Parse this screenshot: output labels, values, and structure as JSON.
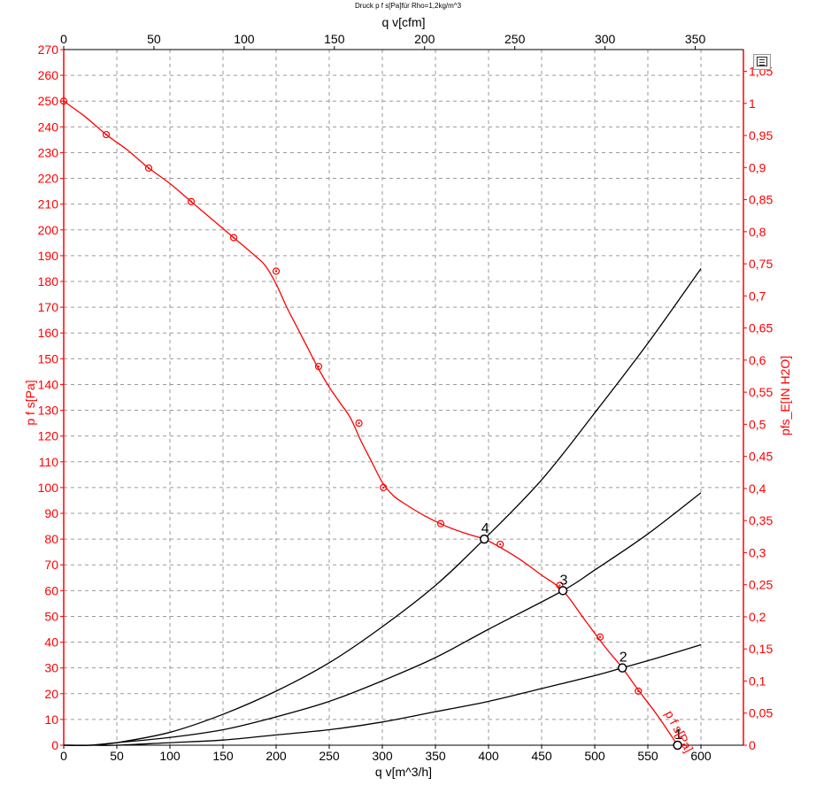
{
  "top_title": "Druck p f s[Pa]für Rho=1,2kg/m^3",
  "toolbar": {
    "icon": "table-view-icon"
  },
  "colors": {
    "red": "#ff0000",
    "black": "#000000",
    "grid": "#9a9a9a"
  },
  "chart_data": {
    "type": "line",
    "x_bottom": {
      "label": "q v[m^3/h]",
      "range": [
        0,
        640
      ],
      "ticks": [
        0,
        50,
        100,
        150,
        200,
        250,
        300,
        350,
        400,
        450,
        500,
        550,
        600
      ]
    },
    "x_top": {
      "label": "q v[cfm]",
      "range": [
        0,
        376.7
      ],
      "ticks": [
        0,
        50,
        100,
        150,
        200,
        250,
        300,
        350
      ]
    },
    "y_left": {
      "label": "p f s[Pa]",
      "range": [
        0,
        270
      ],
      "ticks": [
        0,
        10,
        20,
        30,
        40,
        50,
        60,
        70,
        80,
        90,
        100,
        110,
        120,
        130,
        140,
        150,
        160,
        170,
        180,
        190,
        200,
        210,
        220,
        230,
        240,
        250,
        260,
        270
      ]
    },
    "y_right": {
      "label": "pfs_E[IN H2O]",
      "range": [
        0,
        1.0838
      ],
      "ticks": [
        0,
        0.05,
        0.1,
        0.15,
        0.2,
        0.25,
        0.3,
        0.35,
        0.4,
        0.45,
        0.5,
        0.55,
        0.6,
        0.65,
        0.7,
        0.75,
        0.8,
        0.85,
        0.9,
        0.95,
        1,
        1.05
      ],
      "tick_labels": [
        "0",
        "0,05",
        "0,1",
        "0,15",
        "0,2",
        "0,25",
        "0,3",
        "0,35",
        "0,4",
        "0,45",
        "0,5",
        "0,55",
        "0,6",
        "0,65",
        "0,7",
        "0,75",
        "0,8",
        "0,85",
        "0,9",
        "0,95",
        "1",
        "1,05"
      ]
    },
    "grid": true,
    "series": [
      {
        "name": "p f s[Pa]",
        "color": "#ff0000",
        "curve": [
          [
            0,
            250
          ],
          [
            20,
            244
          ],
          [
            40,
            237
          ],
          [
            60,
            231
          ],
          [
            80,
            224
          ],
          [
            100,
            218
          ],
          [
            120,
            211
          ],
          [
            140,
            204
          ],
          [
            160,
            197
          ],
          [
            180,
            190
          ],
          [
            190,
            186
          ],
          [
            200,
            179
          ],
          [
            210,
            170
          ],
          [
            220,
            162
          ],
          [
            230,
            154
          ],
          [
            240,
            146
          ],
          [
            250,
            139
          ],
          [
            260,
            133
          ],
          [
            270,
            127
          ],
          [
            280,
            118
          ],
          [
            290,
            110
          ],
          [
            300,
            102
          ],
          [
            310,
            97
          ],
          [
            320,
            94
          ],
          [
            340,
            89
          ],
          [
            360,
            85
          ],
          [
            380,
            82
          ],
          [
            396,
            80
          ],
          [
            410,
            77
          ],
          [
            430,
            72
          ],
          [
            450,
            66
          ],
          [
            470,
            60
          ],
          [
            490,
            49
          ],
          [
            510,
            38
          ],
          [
            526,
            30
          ],
          [
            540,
            22
          ],
          [
            560,
            11
          ],
          [
            578,
            0
          ]
        ],
        "markers": [
          [
            0,
            250
          ],
          [
            40,
            237
          ],
          [
            80,
            224
          ],
          [
            120,
            211
          ],
          [
            160,
            197
          ],
          [
            200,
            184
          ],
          [
            240,
            147
          ],
          [
            278,
            125
          ],
          [
            301,
            100
          ],
          [
            355,
            86
          ],
          [
            411,
            78
          ],
          [
            467,
            62
          ],
          [
            505,
            42
          ],
          [
            541,
            21
          ]
        ]
      },
      {
        "name": "",
        "color": "#000000",
        "curve": [
          [
            0,
            0
          ],
          [
            25,
            0
          ],
          [
            50,
            1
          ],
          [
            100,
            5
          ],
          [
            150,
            12
          ],
          [
            200,
            21
          ],
          [
            250,
            32
          ],
          [
            300,
            46
          ],
          [
            350,
            62
          ],
          [
            396,
            80
          ],
          [
            450,
            103
          ],
          [
            500,
            129
          ],
          [
            550,
            156
          ],
          [
            600,
            185
          ]
        ]
      },
      {
        "name": "",
        "color": "#000000",
        "curve": [
          [
            0,
            0
          ],
          [
            25,
            0
          ],
          [
            50,
            1
          ],
          [
            100,
            3
          ],
          [
            150,
            6
          ],
          [
            200,
            11
          ],
          [
            250,
            17
          ],
          [
            300,
            25
          ],
          [
            350,
            34
          ],
          [
            400,
            45
          ],
          [
            470,
            60
          ],
          [
            500,
            68
          ],
          [
            550,
            82
          ],
          [
            600,
            98
          ]
        ]
      },
      {
        "name": "",
        "color": "#000000",
        "curve": [
          [
            0,
            0
          ],
          [
            25,
            0
          ],
          [
            50,
            0
          ],
          [
            100,
            1
          ],
          [
            150,
            2
          ],
          [
            200,
            4
          ],
          [
            250,
            6
          ],
          [
            300,
            9
          ],
          [
            350,
            13
          ],
          [
            400,
            17
          ],
          [
            450,
            22
          ],
          [
            500,
            27
          ],
          [
            526,
            30
          ],
          [
            560,
            34
          ],
          [
            600,
            39
          ]
        ]
      }
    ],
    "operating_points": [
      {
        "label": "1",
        "x": 578,
        "y": 0
      },
      {
        "label": "2",
        "x": 526,
        "y": 30
      },
      {
        "label": "3",
        "x": 470,
        "y": 60
      },
      {
        "label": "4",
        "x": 396,
        "y": 80
      }
    ],
    "curve_label": "p f s[Pa]"
  }
}
